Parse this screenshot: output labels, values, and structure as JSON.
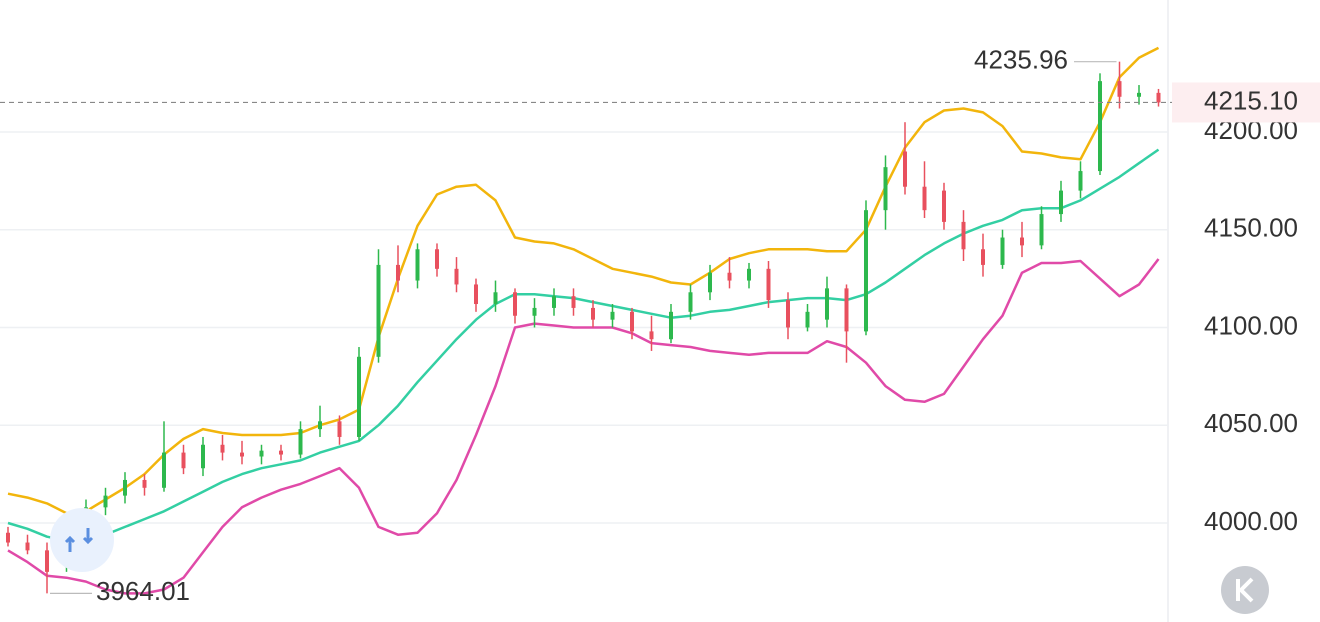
{
  "chart_data": {
    "type": "candlestick",
    "up_color": "#2db84d",
    "down_color": "#e8505e",
    "ylim": [
      3951.4,
      4267.5
    ],
    "yticks": [
      {
        "value": 4000,
        "label": "4000.00"
      },
      {
        "value": 4050,
        "label": "4050.00"
      },
      {
        "value": 4100,
        "label": "4100.00"
      },
      {
        "value": 4150,
        "label": "4150.00"
      },
      {
        "value": 4200,
        "label": "4200.00"
      }
    ],
    "grid": true,
    "last_price": {
      "value": 4215.1,
      "label": "4215.10",
      "color": "#e2364a"
    },
    "ohlc": [
      [
        3995,
        3998,
        3988,
        3990
      ],
      [
        3990,
        3994,
        3984,
        3986
      ],
      [
        3986,
        3990,
        3964.01,
        3975
      ],
      [
        3978,
        3995,
        3975,
        3993
      ],
      [
        3993,
        4012,
        3990,
        4008
      ],
      [
        4008,
        4018,
        4004,
        4014
      ],
      [
        4014,
        4026,
        4010,
        4022
      ],
      [
        4022,
        4025,
        4014,
        4018
      ],
      [
        4018,
        4052,
        4016,
        4036
      ],
      [
        4036,
        4040,
        4025,
        4028
      ],
      [
        4028,
        4044,
        4024,
        4040
      ],
      [
        4040,
        4045,
        4032,
        4036
      ],
      [
        4036,
        4042,
        4030,
        4034
      ],
      [
        4034,
        4040,
        4030,
        4037
      ],
      [
        4037,
        4040,
        4032,
        4035
      ],
      [
        4035,
        4052,
        4033,
        4048
      ],
      [
        4048,
        4060,
        4044,
        4052
      ],
      [
        4052,
        4055,
        4040,
        4044
      ],
      [
        4044,
        4090,
        4042,
        4085
      ],
      [
        4085,
        4140,
        4082,
        4132
      ],
      [
        4132,
        4142,
        4118,
        4124
      ],
      [
        4124,
        4143,
        4120,
        4140
      ],
      [
        4140,
        4143,
        4126,
        4130
      ],
      [
        4130,
        4136,
        4118,
        4122
      ],
      [
        4122,
        4125,
        4108,
        4112
      ],
      [
        4112,
        4124,
        4108,
        4118
      ],
      [
        4118,
        4120,
        4102,
        4106
      ],
      [
        4106,
        4115,
        4100,
        4110
      ],
      [
        4110,
        4120,
        4106,
        4116
      ],
      [
        4116,
        4120,
        4106,
        4110
      ],
      [
        4110,
        4114,
        4100,
        4104
      ],
      [
        4104,
        4112,
        4100,
        4108
      ],
      [
        4108,
        4110,
        4094,
        4098
      ],
      [
        4098,
        4106,
        4088,
        4094
      ],
      [
        4094,
        4112,
        4092,
        4108
      ],
      [
        4108,
        4122,
        4104,
        4118
      ],
      [
        4118,
        4132,
        4114,
        4128
      ],
      [
        4128,
        4136,
        4120,
        4124
      ],
      [
        4124,
        4133,
        4120,
        4130
      ],
      [
        4130,
        4134,
        4110,
        4114
      ],
      [
        4114,
        4118,
        4094,
        4100
      ],
      [
        4100,
        4112,
        4098,
        4108
      ],
      [
        4104,
        4126,
        4100,
        4120
      ],
      [
        4120,
        4122,
        4082,
        4098
      ],
      [
        4098,
        4165,
        4096,
        4160
      ],
      [
        4160,
        4188,
        4150,
        4182
      ],
      [
        4190,
        4205,
        4168,
        4172
      ],
      [
        4172,
        4185,
        4156,
        4160
      ],
      [
        4170,
        4174,
        4150,
        4154
      ],
      [
        4154,
        4160,
        4134,
        4140
      ],
      [
        4140,
        4148,
        4126,
        4132
      ],
      [
        4132,
        4150,
        4130,
        4146
      ],
      [
        4146,
        4154,
        4136,
        4142
      ],
      [
        4142,
        4162,
        4140,
        4158
      ],
      [
        4158,
        4175,
        4154,
        4170
      ],
      [
        4170,
        4185,
        4166,
        4180
      ],
      [
        4180,
        4230,
        4178,
        4226
      ],
      [
        4226,
        4235.96,
        4212,
        4218
      ],
      [
        4218,
        4224,
        4214,
        4220
      ],
      [
        4220,
        4222,
        4213,
        4215.1
      ]
    ],
    "lines": [
      {
        "color": "#f2b50c",
        "values": [
          4015,
          4013,
          4010,
          4005,
          4006,
          4012,
          4018,
          4025,
          4035,
          4043,
          4048,
          4046,
          4045,
          4045,
          4045,
          4046,
          4050,
          4053,
          4058,
          4095,
          4125,
          4152,
          4168,
          4172,
          4173,
          4165,
          4146,
          4144,
          4143,
          4140,
          4135,
          4130,
          4128,
          4126,
          4123,
          4122,
          4128,
          4135,
          4138,
          4140,
          4140,
          4140,
          4139,
          4139,
          4150,
          4172,
          4192,
          4205,
          4211,
          4212,
          4210,
          4203,
          4190,
          4189,
          4187,
          4186,
          4205,
          4228,
          4238,
          4243
        ]
      },
      {
        "color": "#33cfa3",
        "values": [
          4000,
          3997,
          3993,
          3991,
          3992,
          3994,
          3998,
          4002,
          4006,
          4011,
          4016,
          4021,
          4025,
          4028,
          4030,
          4032,
          4036,
          4039,
          4042,
          4050,
          4060,
          4072,
          4083,
          4094,
          4104,
          4112,
          4117,
          4117,
          4116,
          4115,
          4113,
          4111,
          4109,
          4107,
          4105,
          4106,
          4108,
          4109,
          4111,
          4113,
          4114,
          4115,
          4115,
          4114,
          4117,
          4123,
          4130,
          4137,
          4143,
          4148,
          4152,
          4155,
          4160,
          4161,
          4161,
          4165,
          4171,
          4177,
          4184,
          4191
        ]
      },
      {
        "color": "#e04aa8",
        "values": [
          3986,
          3980,
          3973,
          3972,
          3970,
          3966,
          3964,
          3964,
          3966,
          3972,
          3985,
          3998,
          4008,
          4013,
          4017,
          4020,
          4024,
          4028,
          4018,
          3998,
          3994,
          3995,
          4005,
          4022,
          4045,
          4070,
          4100,
          4102,
          4101,
          4100,
          4100,
          4100,
          4097,
          4092,
          4091,
          4090,
          4088,
          4087,
          4086,
          4087,
          4087,
          4087,
          4093,
          4090,
          4082,
          4070,
          4063,
          4062,
          4066,
          4080,
          4094,
          4106,
          4128,
          4133,
          4133,
          4134,
          4125,
          4116,
          4122,
          4135
        ]
      }
    ]
  }
}
